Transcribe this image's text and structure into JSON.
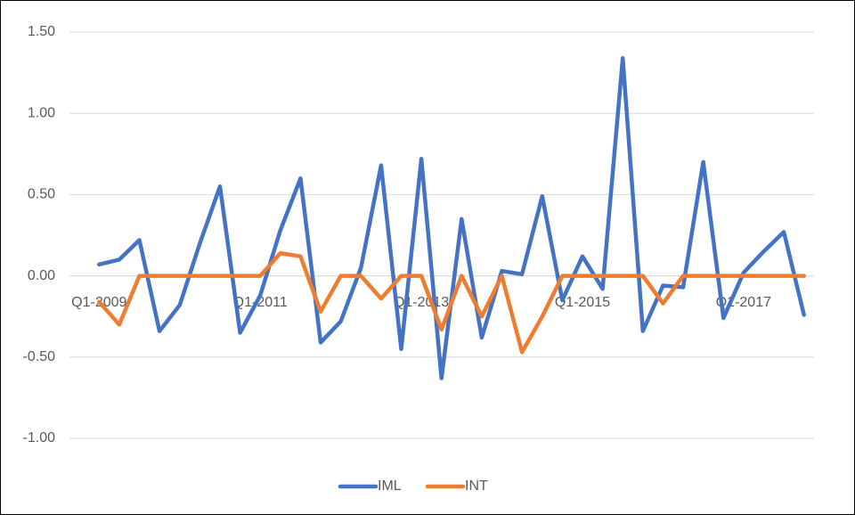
{
  "chart_data": {
    "type": "line",
    "categories": [
      "Q1-2009",
      null,
      null,
      null,
      null,
      null,
      null,
      null,
      "Q1-2011",
      null,
      null,
      null,
      null,
      null,
      null,
      null,
      "Q1-2013",
      null,
      null,
      null,
      null,
      null,
      null,
      null,
      "Q1-2015",
      null,
      null,
      null,
      null,
      null,
      null,
      null,
      "Q1-2017",
      null,
      null,
      null
    ],
    "series": [
      {
        "name": "IML",
        "color": "#4472c4",
        "values": [
          0.07,
          0.1,
          0.22,
          -0.34,
          -0.18,
          0.2,
          0.55,
          -0.35,
          -0.12,
          0.28,
          0.6,
          -0.41,
          -0.28,
          0.05,
          0.68,
          -0.45,
          0.72,
          -0.63,
          0.35,
          -0.38,
          0.03,
          0.01,
          0.49,
          -0.15,
          0.12,
          -0.08,
          1.34,
          -0.34,
          -0.06,
          -0.07,
          0.7,
          -0.26,
          0.02,
          0.15,
          0.27,
          -0.24
        ]
      },
      {
        "name": "INT",
        "color": "#ed7d31",
        "values": [
          -0.16,
          -0.3,
          0,
          0,
          0,
          0,
          0,
          0,
          0,
          0.14,
          0.12,
          -0.22,
          0,
          0,
          -0.14,
          0,
          0,
          -0.33,
          0,
          -0.25,
          0,
          -0.47,
          -0.25,
          0,
          0,
          0,
          0,
          0,
          -0.17,
          0,
          0,
          0,
          0,
          0,
          0,
          0
        ]
      }
    ],
    "ylim": [
      -1,
      1.5
    ],
    "yticks": [
      {
        "value": -1,
        "label": "-1.00"
      },
      {
        "value": -0.5,
        "label": "-0.50"
      },
      {
        "value": 0,
        "label": "0.00"
      },
      {
        "value": 0.5,
        "label": "0.50"
      },
      {
        "value": 1,
        "label": "1.00"
      },
      {
        "value": 1.5,
        "label": "1.50"
      }
    ],
    "grid": true,
    "legend": "bottom"
  }
}
